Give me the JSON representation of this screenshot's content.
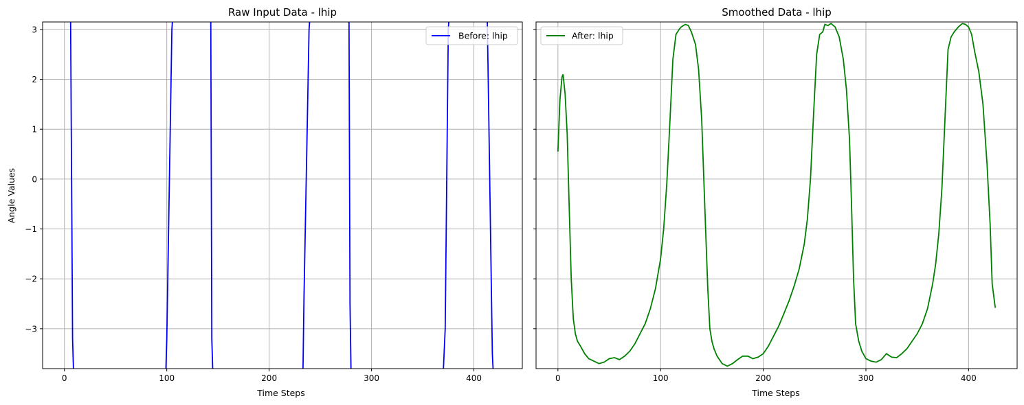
{
  "chart_data": [
    {
      "type": "line",
      "title": "Raw Input Data - lhip",
      "xlabel": "Time Steps",
      "ylabel": "Angle Values",
      "xlim": [
        -21.3,
        447.3
      ],
      "ylim": [
        -3.8,
        3.15
      ],
      "xticks": [
        0,
        100,
        200,
        300,
        400
      ],
      "xtick_labels": [
        "0",
        "100",
        "200",
        "300",
        "400"
      ],
      "yticks": [
        -3,
        -2,
        -1,
        0,
        1,
        2,
        3
      ],
      "ytick_labels": [
        "−3",
        "−2",
        "−1",
        "0",
        "1",
        "2",
        "3"
      ],
      "grid": true,
      "legend_position": "upper right",
      "series": [
        {
          "name": "Before: lhip",
          "color": "#0000ff",
          "x": [
            0,
            6,
            8,
            9,
            99,
            100,
            105,
            106,
            143,
            144,
            145,
            233,
            234,
            239,
            240,
            278,
            279,
            280,
            370,
            372,
            375,
            376,
            413,
            414,
            418,
            419,
            426
          ],
          "y": [
            5.2,
            3.3,
            -3.2,
            -3.9,
            -3.9,
            -3.2,
            3.0,
            3.3,
            3.3,
            -3.2,
            -3.9,
            -3.9,
            -2.4,
            3.0,
            3.3,
            3.3,
            -2.5,
            -3.9,
            -3.9,
            -3.0,
            3.0,
            3.3,
            3.3,
            2.0,
            -3.5,
            -3.9,
            -3.9
          ]
        }
      ]
    },
    {
      "type": "line",
      "title": "Smoothed Data - lhip",
      "xlabel": "Time Steps",
      "ylabel": "",
      "xlim": [
        -21.3,
        447.3
      ],
      "ylim": [
        -3.8,
        3.15
      ],
      "xticks": [
        0,
        100,
        200,
        300,
        400
      ],
      "xtick_labels": [
        "0",
        "100",
        "200",
        "300",
        "400"
      ],
      "yticks": [
        -3,
        -2,
        -1,
        0,
        1,
        2,
        3
      ],
      "grid": true,
      "legend_position": "upper left",
      "series": [
        {
          "name": "After: lhip",
          "color": "#008000",
          "x": [
            0,
            2,
            4,
            5,
            7,
            9,
            11,
            13,
            15,
            17,
            19,
            22,
            26,
            30,
            35,
            40,
            45,
            50,
            55,
            60,
            65,
            70,
            75,
            80,
            85,
            90,
            95,
            100,
            103,
            106,
            109,
            112,
            115,
            118,
            120,
            124,
            127,
            130,
            134,
            137,
            140,
            143,
            146,
            148,
            150,
            152,
            155,
            160,
            165,
            170,
            175,
            180,
            185,
            190,
            195,
            200,
            205,
            210,
            215,
            220,
            225,
            230,
            235,
            240,
            243,
            246,
            249,
            252,
            255,
            258,
            260,
            263,
            266,
            270,
            274,
            278,
            281,
            284,
            286,
            288,
            290,
            293,
            296,
            300,
            305,
            310,
            315,
            320,
            325,
            330,
            335,
            340,
            345,
            350,
            355,
            360,
            365,
            368,
            371,
            374,
            377,
            380,
            383,
            386,
            390,
            394,
            397,
            400,
            403,
            406,
            410,
            414,
            418,
            421,
            423,
            426
          ],
          "y": [
            0.55,
            1.6,
            2.05,
            2.1,
            1.7,
            0.9,
            -0.6,
            -2.0,
            -2.8,
            -3.1,
            -3.25,
            -3.35,
            -3.5,
            -3.6,
            -3.65,
            -3.7,
            -3.67,
            -3.6,
            -3.58,
            -3.62,
            -3.55,
            -3.45,
            -3.3,
            -3.1,
            -2.9,
            -2.6,
            -2.2,
            -1.6,
            -1.0,
            -0.1,
            1.1,
            2.4,
            2.9,
            3.0,
            3.05,
            3.1,
            3.08,
            2.95,
            2.7,
            2.2,
            1.2,
            -0.5,
            -2.2,
            -3.0,
            -3.25,
            -3.4,
            -3.55,
            -3.7,
            -3.75,
            -3.7,
            -3.62,
            -3.55,
            -3.55,
            -3.6,
            -3.57,
            -3.5,
            -3.35,
            -3.15,
            -2.95,
            -2.7,
            -2.45,
            -2.15,
            -1.8,
            -1.3,
            -0.8,
            0.0,
            1.3,
            2.5,
            2.9,
            2.95,
            3.1,
            3.08,
            3.12,
            3.05,
            2.85,
            2.4,
            1.8,
            0.8,
            -0.5,
            -2.0,
            -2.9,
            -3.25,
            -3.45,
            -3.6,
            -3.65,
            -3.67,
            -3.62,
            -3.5,
            -3.57,
            -3.58,
            -3.5,
            -3.4,
            -3.25,
            -3.1,
            -2.9,
            -2.6,
            -2.1,
            -1.7,
            -1.1,
            -0.2,
            1.2,
            2.6,
            2.85,
            2.95,
            3.05,
            3.12,
            3.1,
            3.05,
            2.9,
            2.55,
            2.15,
            1.5,
            0.3,
            -0.9,
            -2.1,
            -2.58
          ]
        }
      ]
    }
  ]
}
